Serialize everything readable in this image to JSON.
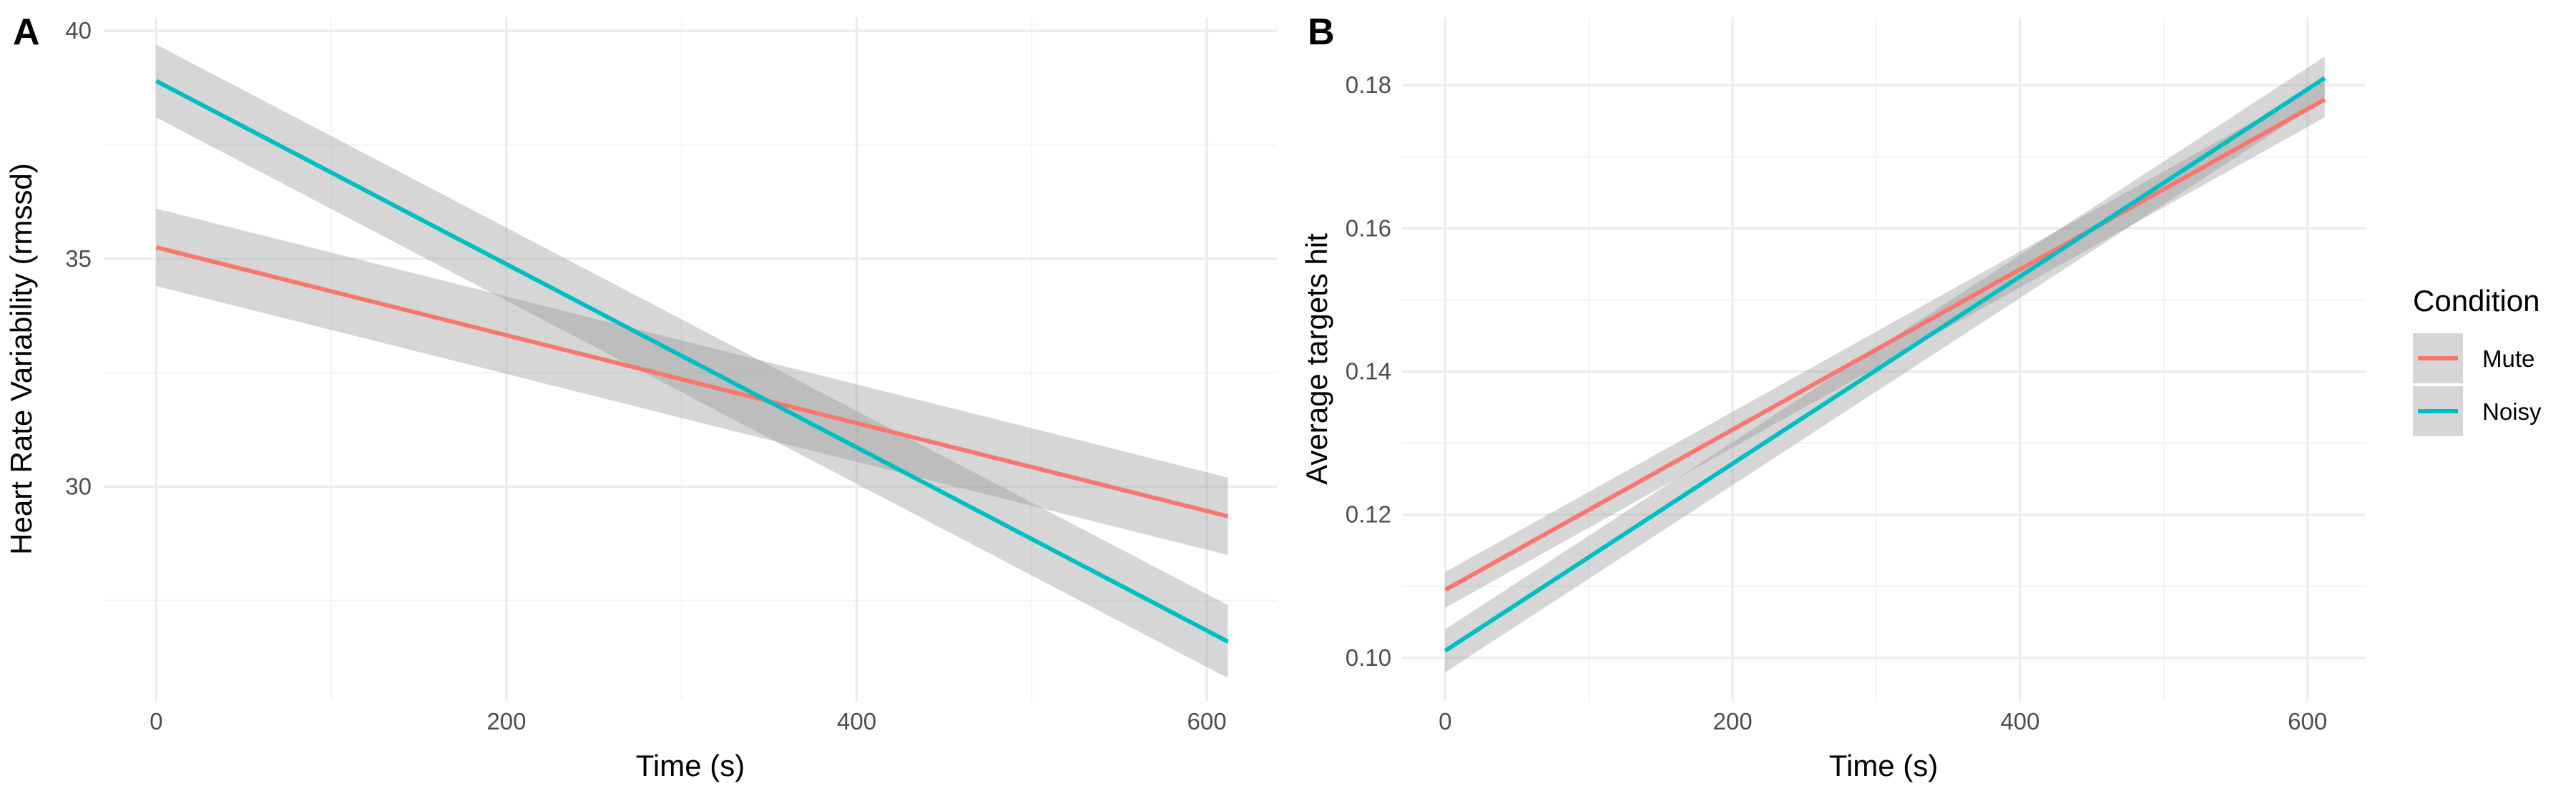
{
  "colors": {
    "mute": "#F8766D",
    "noisy": "#00BFC4",
    "ribbon": "#999999",
    "grid_major": "#EBEBEB",
    "grid_minor": "#F4F4F4"
  },
  "legend": {
    "title": "Condition",
    "items": [
      {
        "label": "Mute",
        "color": "#F8766D"
      },
      {
        "label": "Noisy",
        "color": "#00BFC4"
      }
    ]
  },
  "chart_data": [
    {
      "type": "line",
      "panel": "A",
      "xlabel": "Time (s)",
      "ylabel": "Heart Rate Variability (rmssd)",
      "xlim": [
        -30,
        640
      ],
      "ylim": [
        25.3,
        40.3
      ],
      "x_ticks": [
        0,
        200,
        400,
        600
      ],
      "y_ticks": [
        30,
        35,
        40
      ],
      "y_decimals": 0,
      "grid": true,
      "series": [
        {
          "name": "Mute",
          "x": [
            0,
            612
          ],
          "y": [
            35.25,
            29.35
          ],
          "ci_low": [
            34.4,
            28.5
          ],
          "ci_high": [
            36.1,
            30.2
          ]
        },
        {
          "name": "Noisy",
          "x": [
            0,
            612
          ],
          "y": [
            38.9,
            26.6
          ],
          "ci_low": [
            38.1,
            25.8
          ],
          "ci_high": [
            39.7,
            27.4
          ]
        }
      ]
    },
    {
      "type": "line",
      "panel": "B",
      "xlabel": "Time (s)",
      "ylabel": "Average targets hit",
      "xlim": [
        -30,
        640
      ],
      "ylim": [
        0.094,
        0.1895
      ],
      "x_ticks": [
        0,
        200,
        400,
        600
      ],
      "y_ticks": [
        0.1,
        0.12,
        0.14,
        0.16,
        0.18
      ],
      "y_decimals": 2,
      "grid": true,
      "series": [
        {
          "name": "Mute",
          "x": [
            0,
            612
          ],
          "y": [
            0.1095,
            0.178
          ],
          "ci_low": [
            0.107,
            0.1755
          ],
          "ci_high": [
            0.112,
            0.1805
          ]
        },
        {
          "name": "Noisy",
          "x": [
            0,
            612
          ],
          "y": [
            0.101,
            0.181
          ],
          "ci_low": [
            0.098,
            0.178
          ],
          "ci_high": [
            0.104,
            0.184
          ]
        }
      ]
    }
  ]
}
